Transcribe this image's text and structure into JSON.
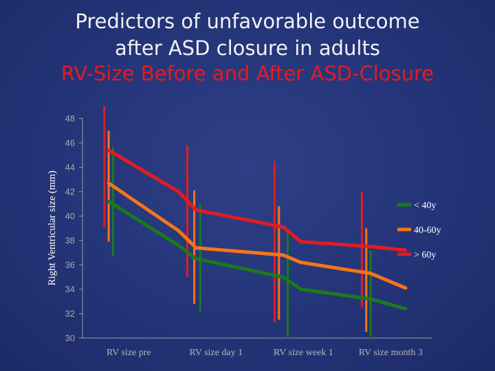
{
  "title": {
    "line1": "Predictors of unfavorable outcome",
    "line2": "after ASD closure in adults",
    "line3": "RV-Size Before and After ASD-Closure"
  },
  "chart_data": {
    "type": "line",
    "title": "RV-Size Before and After ASD-Closure",
    "ylabel": "Right Ventricular size (mm)",
    "xlabel": "",
    "ylim": [
      30,
      48
    ],
    "yticks": [
      30,
      32,
      34,
      36,
      38,
      40,
      42,
      44,
      46,
      48
    ],
    "categories": [
      "RV size pre",
      "RV size day 1",
      "RV size week 1",
      "RV size month 3"
    ],
    "x": [
      0.3,
      1.1,
      1.3,
      2.3,
      2.5,
      3.3,
      3.7
    ],
    "legend_position": "right",
    "series": [
      {
        "name": "< 40y",
        "color": "#1a7a1a",
        "values": [
          41.2,
          37.6,
          36.5,
          35.0,
          34.0,
          33.2,
          32.4
        ],
        "error_bars": [
          {
            "x": 0.35,
            "low": 36.7,
            "high": 45.7
          },
          {
            "x": 1.35,
            "low": 32.2,
            "high": 41.0
          },
          {
            "x": 2.35,
            "low": 30.0,
            "high": 38.7
          },
          {
            "x": 3.3,
            "low": 29.9,
            "high": 37.2
          }
        ]
      },
      {
        "name": "40-60y",
        "color": "#f57418",
        "values": [
          42.7,
          38.8,
          37.4,
          36.8,
          36.2,
          35.3,
          34.1
        ],
        "error_bars": [
          {
            "x": 0.3,
            "low": 37.9,
            "high": 47.0
          },
          {
            "x": 1.28,
            "low": 32.8,
            "high": 42.1
          },
          {
            "x": 2.25,
            "low": 31.5,
            "high": 40.8
          },
          {
            "x": 3.25,
            "low": 30.5,
            "high": 39.0
          }
        ]
      },
      {
        "name": "> 60y",
        "color": "#e31b23",
        "values": [
          45.4,
          42.0,
          40.5,
          39.1,
          37.9,
          37.5,
          37.2
        ],
        "error_bars": [
          {
            "x": 0.25,
            "low": 39.1,
            "high": 49.0
          },
          {
            "x": 1.2,
            "low": 35.0,
            "high": 45.8
          },
          {
            "x": 2.2,
            "low": 31.3,
            "high": 44.5
          },
          {
            "x": 3.2,
            "low": 32.5,
            "high": 42.0
          }
        ]
      }
    ]
  }
}
